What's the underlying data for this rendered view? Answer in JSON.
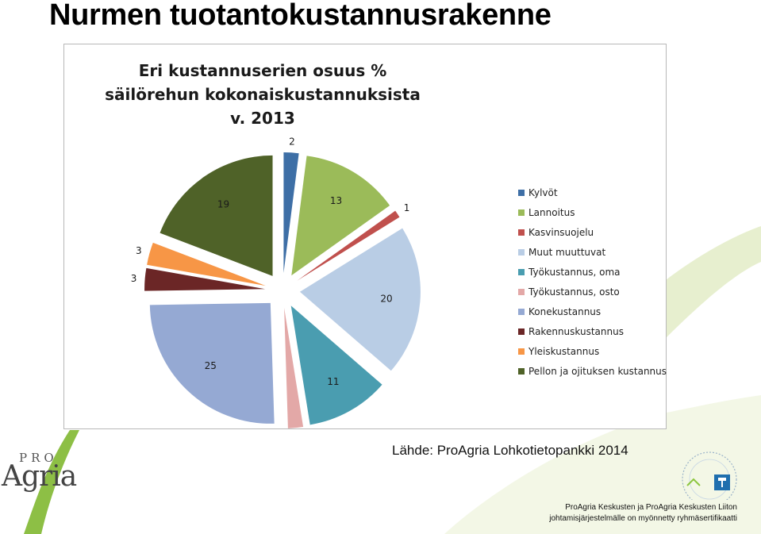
{
  "slide": {
    "title": "Nurmen tuotantokustannusrakenne",
    "source": "Lähde: ProAgria Lohkotietopankki 2014",
    "footer_line1": "ProAgria Keskusten ja ProAgria Keskusten Liiton",
    "footer_line2": "johtamisjärjestelmälle on myönnetty ryhmäsertifikaatti"
  },
  "logo": {
    "pro": "PRO",
    "agria": "Agria"
  },
  "chart_data": {
    "type": "pie",
    "title_lines": [
      "Eri kustannuserien osuus %",
      "säilörehun kokonaiskustannuksista",
      "v. 2013"
    ],
    "categories": [
      "Kylvöt",
      "Lannoitus",
      "Kasvinsuojelu",
      "Muut muuttuvat",
      "Työkustannus, oma",
      "Työkustannus, osto",
      "Konekustannus",
      "Rakennuskustannus",
      "Yleiskustannus",
      "Pellon ja ojituksen kustannus"
    ],
    "values": [
      2,
      13,
      1,
      20,
      11,
      2,
      25,
      3,
      3,
      19
    ],
    "colors": [
      "#3e6fa6",
      "#9bbb59",
      "#c0504d",
      "#b9cde5",
      "#4a9db0",
      "#e3a8a7",
      "#95a9d3",
      "#6b2626",
      "#f79646",
      "#4f6228"
    ],
    "legend_position": "right",
    "exploded": true
  }
}
